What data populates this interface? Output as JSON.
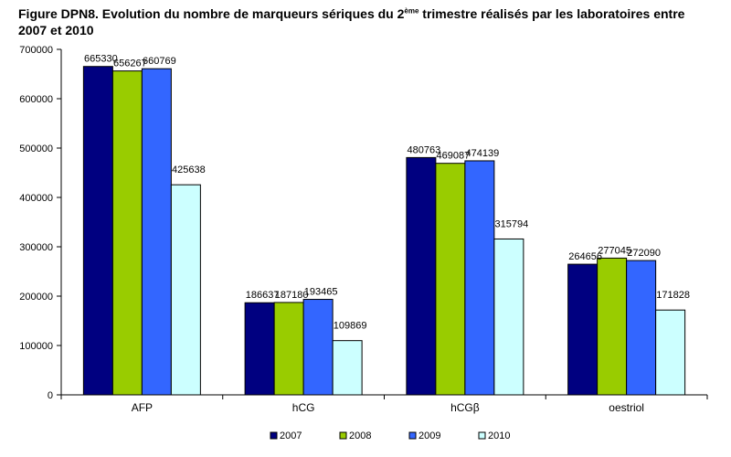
{
  "title_part1": "Figure DPN8. Evolution du nombre de marqueurs sériques du 2",
  "title_sup": "ème",
  "title_part2": " trimestre réalisés par les laboratoires entre 2007 et 2010",
  "chart_data": {
    "type": "bar",
    "categories": [
      "AFP",
      "hCG",
      "hCGβ",
      "oestriol"
    ],
    "series": [
      {
        "name": "2007",
        "color": "#000080",
        "values": [
          665330,
          186637,
          480763,
          264656
        ]
      },
      {
        "name": "2008",
        "color": "#99CC00",
        "values": [
          656267,
          187180,
          469087,
          277045
        ]
      },
      {
        "name": "2009",
        "color": "#3366FF",
        "values": [
          660769,
          193465,
          474139,
          272090
        ]
      },
      {
        "name": "2010",
        "color": "#CCFFFF",
        "values": [
          425638,
          109869,
          315794,
          171828
        ]
      }
    ],
    "ylim": [
      0,
      700000
    ],
    "yticks": [
      "0",
      "100000",
      "200000",
      "300000",
      "400000",
      "500000",
      "600000",
      "700000"
    ],
    "grid": false,
    "legend": "bottom"
  }
}
